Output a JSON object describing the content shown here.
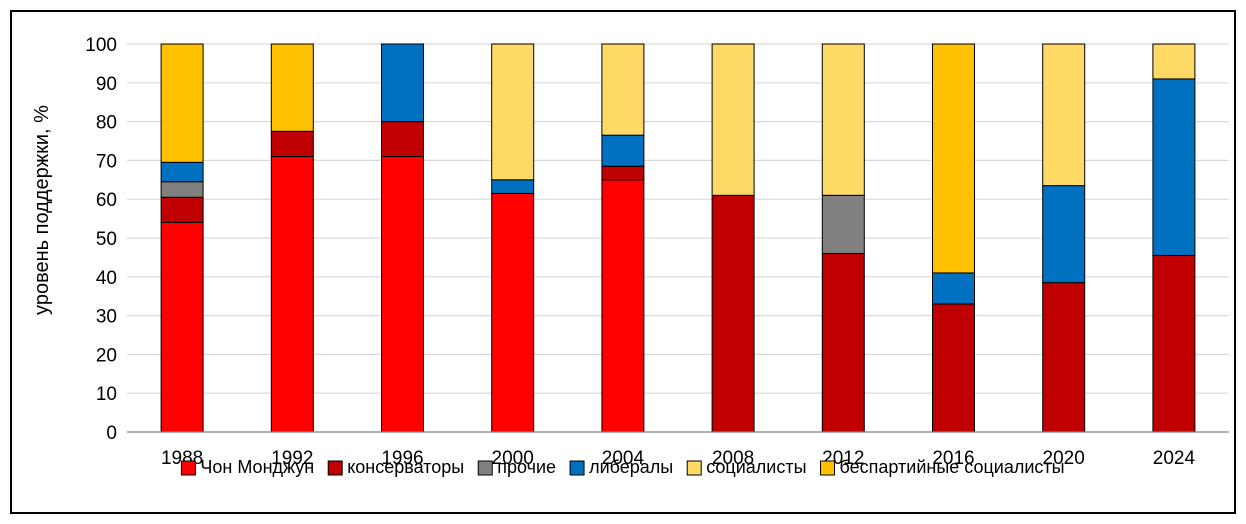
{
  "chart_data": {
    "type": "bar",
    "stacked": true,
    "ylabel": "уровень поддержки, %",
    "xlabel": "",
    "ylim": [
      0,
      100
    ],
    "yticks": [
      0,
      10,
      20,
      30,
      40,
      50,
      60,
      70,
      80,
      90,
      100
    ],
    "grid": true,
    "legend_position": "bottom",
    "categories": [
      "1988",
      "1992",
      "1996",
      "2000",
      "2004",
      "2008",
      "2012",
      "2016",
      "2020",
      "2024"
    ],
    "series": [
      {
        "name": "Чон Монджун",
        "color": "#ff0000",
        "values": [
          54,
          71,
          71,
          61.5,
          65,
          0,
          0,
          0,
          0,
          0
        ]
      },
      {
        "name": "консерваторы",
        "color": "#c00000",
        "values": [
          6.5,
          6.5,
          9,
          0,
          3.5,
          61,
          46,
          33,
          38.5,
          45.5
        ]
      },
      {
        "name": "прочие",
        "color": "#808080",
        "values": [
          4,
          0,
          0,
          0,
          0,
          0,
          15,
          0,
          0,
          0
        ]
      },
      {
        "name": "либералы",
        "color": "#0070c0",
        "values": [
          5,
          0,
          20,
          3.5,
          8,
          0,
          0,
          8,
          25,
          45.5
        ]
      },
      {
        "name": "социалисты",
        "color": "#ffd966",
        "values": [
          0,
          0,
          0,
          35,
          23.5,
          39,
          39,
          0,
          36.5,
          9
        ]
      },
      {
        "name": "беспартийные социалисты",
        "color": "#ffc000",
        "values": [
          30.5,
          22.5,
          0,
          0,
          0,
          0,
          0,
          59,
          0,
          0
        ]
      }
    ]
  }
}
